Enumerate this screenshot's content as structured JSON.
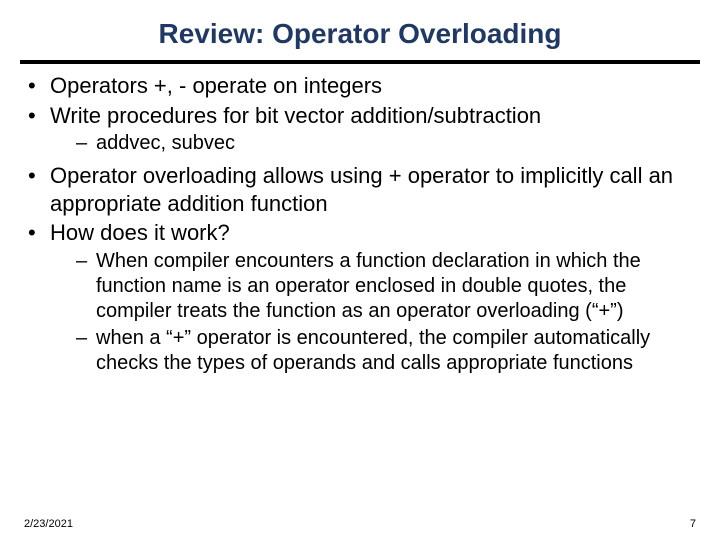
{
  "title": "Review: Operator Overloading",
  "title_color": "#1f3864",
  "title_fontsize": 28,
  "divider_color": "#000000",
  "body_fontsize": 22,
  "sub_fontsize": 20,
  "background_color": "#ffffff",
  "bullets": {
    "b1": "Operators +, - operate on integers",
    "b2": "Write procedures for bit vector addition/subtraction",
    "b2s1": "addvec, subvec",
    "b3": "Operator overloading allows using + operator to implicitly call an appropriate addition function",
    "b4": "How does it work?",
    "b4s1": "When compiler encounters a function declaration in which the function name is an operator enclosed in double quotes, the compiler treats the function as an operator overloading (“+”)",
    "b4s2": "when a “+” operator is encountered, the compiler automatically checks the types of operands and calls appropriate functions"
  },
  "footer": {
    "date": "2/23/2021",
    "page": "7"
  }
}
